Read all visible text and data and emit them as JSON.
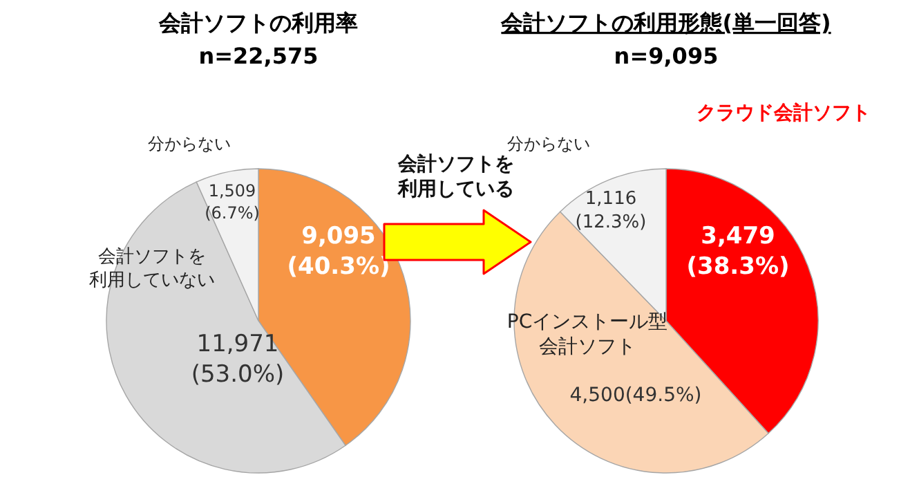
{
  "chart_data": [
    {
      "type": "pie",
      "title": "会計ソフトの利用率",
      "subtitle": "n=22,575",
      "categories": [
        null,
        "会計ソフトを利用していない",
        "分からない"
      ],
      "values": [
        9095,
        11971,
        1509
      ],
      "colors": [
        "#f79646",
        "#d9d9d9",
        "#f2f2f2"
      ],
      "value_labels": [
        "9,095\n(40.3%)",
        "11,971\n(53.0%)",
        "1,509\n(6.7%)"
      ],
      "annotations": [
        "会計ソフトを利用している"
      ]
    },
    {
      "type": "pie",
      "title": "会計ソフトの利用形態(単一回答)",
      "subtitle": "n=9,095",
      "categories": [
        "クラウド会計ソフト",
        "PCインストール型会計ソフト",
        "分からない"
      ],
      "values": [
        3479,
        4500,
        1116
      ],
      "colors": [
        "#ff0000",
        "#fbd5b5",
        "#f2f2f2"
      ],
      "value_labels": [
        "3,479\n(38.3%)",
        "4,500(49.5%)",
        "1,116\n(12.3%)"
      ]
    }
  ]
}
